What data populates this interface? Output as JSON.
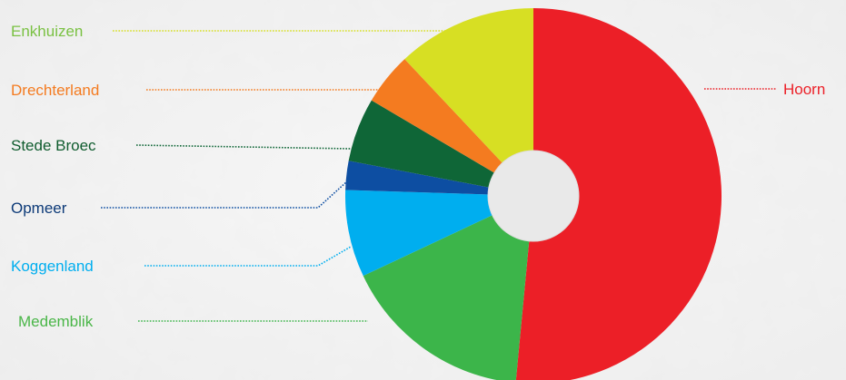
{
  "chart_data": {
    "type": "pie",
    "donut": true,
    "title": "",
    "units": "percent",
    "slices": [
      {
        "label": "Hoorn",
        "value": 51.5,
        "color": "#ec1f27"
      },
      {
        "label": "Medemblik",
        "value": 16.5,
        "color": "#3cb54a"
      },
      {
        "label": "Koggenland",
        "value": 7.5,
        "color": "#00aeef"
      },
      {
        "label": "Opmeer",
        "value": 2.5,
        "color": "#0d4ea2"
      },
      {
        "label": "Stede Broec",
        "value": 5.5,
        "color": "#0f6637"
      },
      {
        "label": "Drechterland",
        "value": 4.5,
        "color": "#f47b20"
      },
      {
        "label": "Enkhuizen",
        "value": 12.0,
        "color": "#d7df23"
      }
    ],
    "label_colors": {
      "Hoorn": "#ec1f27",
      "Medemblik": "#4ab648",
      "Koggenland": "#00aeef",
      "Opmeer": "#0d3a78",
      "Stede Broec": "#0f5c2e",
      "Drechterland": "#f47b20",
      "Enkhuizen": "#7ac143"
    }
  }
}
